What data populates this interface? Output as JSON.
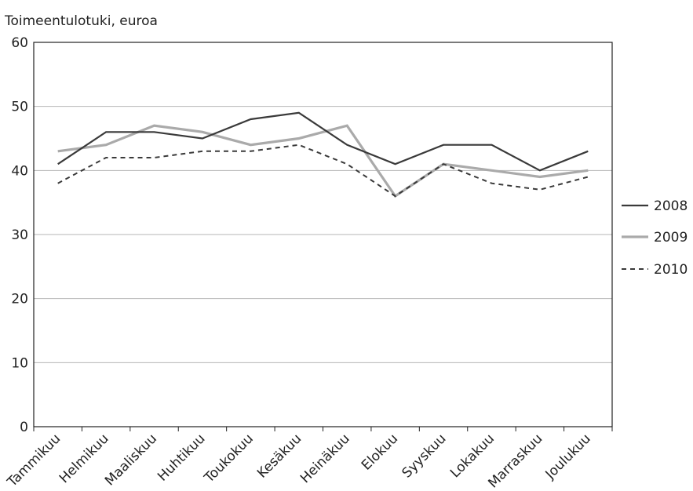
{
  "chart_data": {
    "type": "line",
    "ylabel": "Toimeentulotuki, euroa",
    "xlabel": "",
    "ylim": [
      0,
      60
    ],
    "yticks": [
      0,
      10,
      20,
      30,
      40,
      50,
      60
    ],
    "grid": true,
    "legend_position": "right",
    "categories": [
      "Tammikuu",
      "Helmikuu",
      "Maaliskuu",
      "Huhtikuu",
      "Toukokuu",
      "Kesäkuu",
      "Heinäkuu",
      "Elokuu",
      "Syyskuu",
      "Lokakuu",
      "Marraskuu",
      "Joulukuu"
    ],
    "series": [
      {
        "name": "2008",
        "color": "#3a3a3a",
        "style": "solid",
        "values": [
          41,
          46,
          46,
          45,
          48,
          49,
          44,
          41,
          44,
          44,
          40,
          43
        ]
      },
      {
        "name": "2009",
        "color": "#aaaaaa",
        "style": "solid",
        "values": [
          43,
          44,
          47,
          46,
          44,
          45,
          47,
          36,
          41,
          40,
          39,
          40
        ]
      },
      {
        "name": "2010",
        "color": "#3a3a3a",
        "style": "dashed",
        "values": [
          38,
          42,
          42,
          43,
          43,
          44,
          41,
          36,
          41,
          38,
          37,
          39
        ]
      }
    ]
  }
}
